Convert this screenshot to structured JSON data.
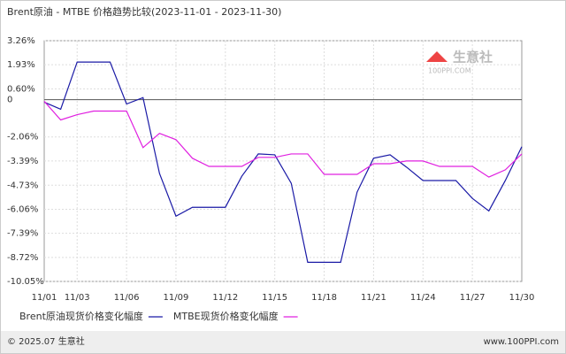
{
  "chart_data": {
    "type": "line",
    "title": "Brent原油 - MTBE 价格趋势比较(2023-11-01 - 2023-11-30)",
    "categories": [
      "11/01",
      null,
      "11/03",
      null,
      null,
      "11/06",
      null,
      null,
      "11/09",
      null,
      null,
      "11/12",
      null,
      null,
      "11/15",
      null,
      null,
      "11/18",
      null,
      null,
      "11/21",
      null,
      null,
      "11/24",
      null,
      null,
      "11/27",
      null,
      null,
      "11/30"
    ],
    "series": [
      {
        "name": "Brent原油现货价格变化幅度",
        "color": "#1a1aa6",
        "values": [
          -0.14,
          -0.53,
          2.08,
          2.08,
          2.08,
          -0.24,
          0.11,
          -4.08,
          -6.44,
          -5.95,
          -5.95,
          -5.95,
          -4.23,
          -3.0,
          -3.05,
          -4.62,
          -8.99,
          -8.99,
          -8.99,
          -5.11,
          -3.24,
          -3.05,
          -3.73,
          -4.47,
          -4.47,
          -4.47,
          -5.46,
          -6.15,
          -4.47,
          -2.6
        ]
      },
      {
        "name": "MTBE现货价格变化幅度",
        "color": "#e020e0",
        "values": [
          -0.09,
          -1.12,
          -0.83,
          -0.63,
          -0.63,
          -0.63,
          -2.65,
          -1.86,
          -2.21,
          -3.24,
          -3.69,
          -3.69,
          -3.69,
          -3.19,
          -3.19,
          -3.0,
          -3.0,
          -4.13,
          -4.13,
          -4.13,
          -3.54,
          -3.54,
          -3.39,
          -3.39,
          -3.69,
          -3.69,
          -3.69,
          -4.28,
          -3.88,
          -3.0
        ]
      }
    ],
    "ylim": [
      -10.05,
      3.26
    ],
    "yticks": [
      {
        "value": 3.26,
        "label": "3.26%"
      },
      {
        "value": 1.93,
        "label": "1.93%"
      },
      {
        "value": 0.6,
        "label": "0.60%"
      },
      0,
      {
        "value": -2.06,
        "label": "-2.06%"
      },
      {
        "value": -3.39,
        "label": "-3.39%"
      },
      {
        "value": -4.73,
        "label": "-4.73%"
      },
      {
        "value": -6.06,
        "label": "-6.06%"
      },
      {
        "value": -7.39,
        "label": "-7.39%"
      },
      {
        "value": -8.72,
        "label": "-8.72%"
      },
      {
        "value": -10.05,
        "label": "-10.05%"
      }
    ],
    "grid": true,
    "watermark": {
      "name": "生意社",
      "site": "100PPI.COM"
    },
    "footer": {
      "left": "© 2025.07 生意社",
      "right": "www.100PPI.com"
    }
  }
}
